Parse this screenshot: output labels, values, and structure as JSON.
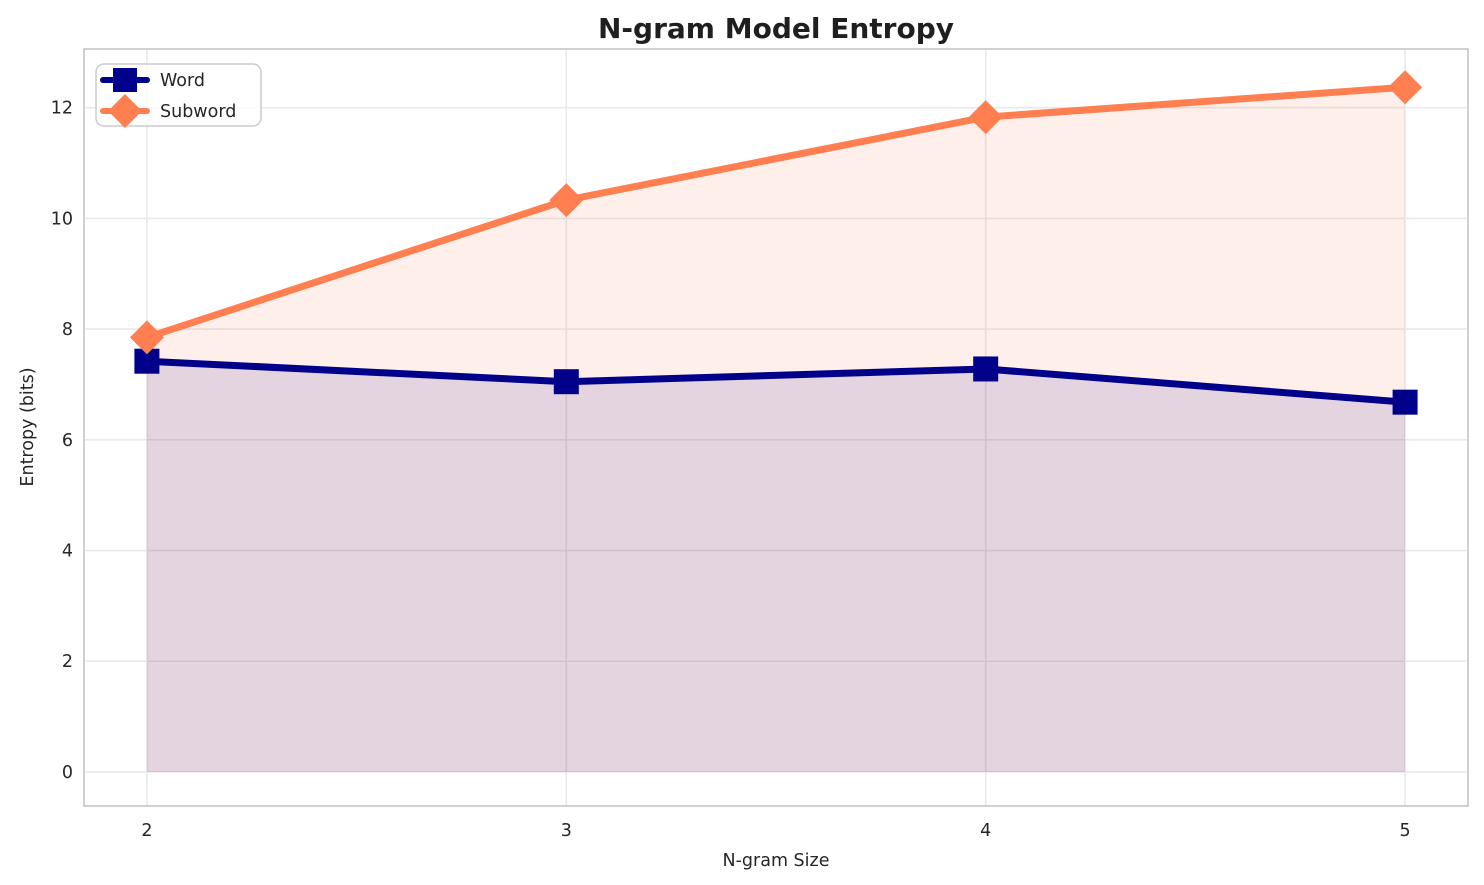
{
  "title": "N-gram Model Entropy",
  "colors": {
    "word_line": "#00008B",
    "subword_line": "#FF7F50",
    "word_fill": "rgba(0,0,139,0.11)",
    "subword_fill": "rgba(255,127,80,0.12)",
    "grid": "#E9E9E9",
    "spine": "#CBCBCB",
    "text": "#262626",
    "legend_bg": "rgba(255,255,255,0.8)",
    "legend_border": "#CCCCCC"
  },
  "chart_data": {
    "type": "line",
    "title": "N-gram Model Entropy",
    "xlabel": "N-gram Size",
    "ylabel": "Entropy (bits)",
    "x": [
      2,
      3,
      4,
      5
    ],
    "series": [
      {
        "name": "Word",
        "values": [
          7.42,
          7.05,
          7.28,
          6.68
        ],
        "color": "#00008B",
        "marker": "square"
      },
      {
        "name": "Subword",
        "values": [
          7.85,
          10.33,
          11.83,
          12.37
        ],
        "color": "#FF7F50",
        "marker": "diamond"
      }
    ],
    "xticks": [
      2,
      3,
      4,
      5
    ],
    "yticks": [
      0,
      2,
      4,
      6,
      8,
      10,
      12
    ],
    "xlim": [
      1.85,
      5.15
    ],
    "ylim": [
      -0.615,
      13.06
    ],
    "grid": true,
    "fill_to_zero": true,
    "legend_position": "upper-left"
  },
  "legend": {
    "items": [
      {
        "label": "Word"
      },
      {
        "label": "Subword"
      }
    ]
  }
}
